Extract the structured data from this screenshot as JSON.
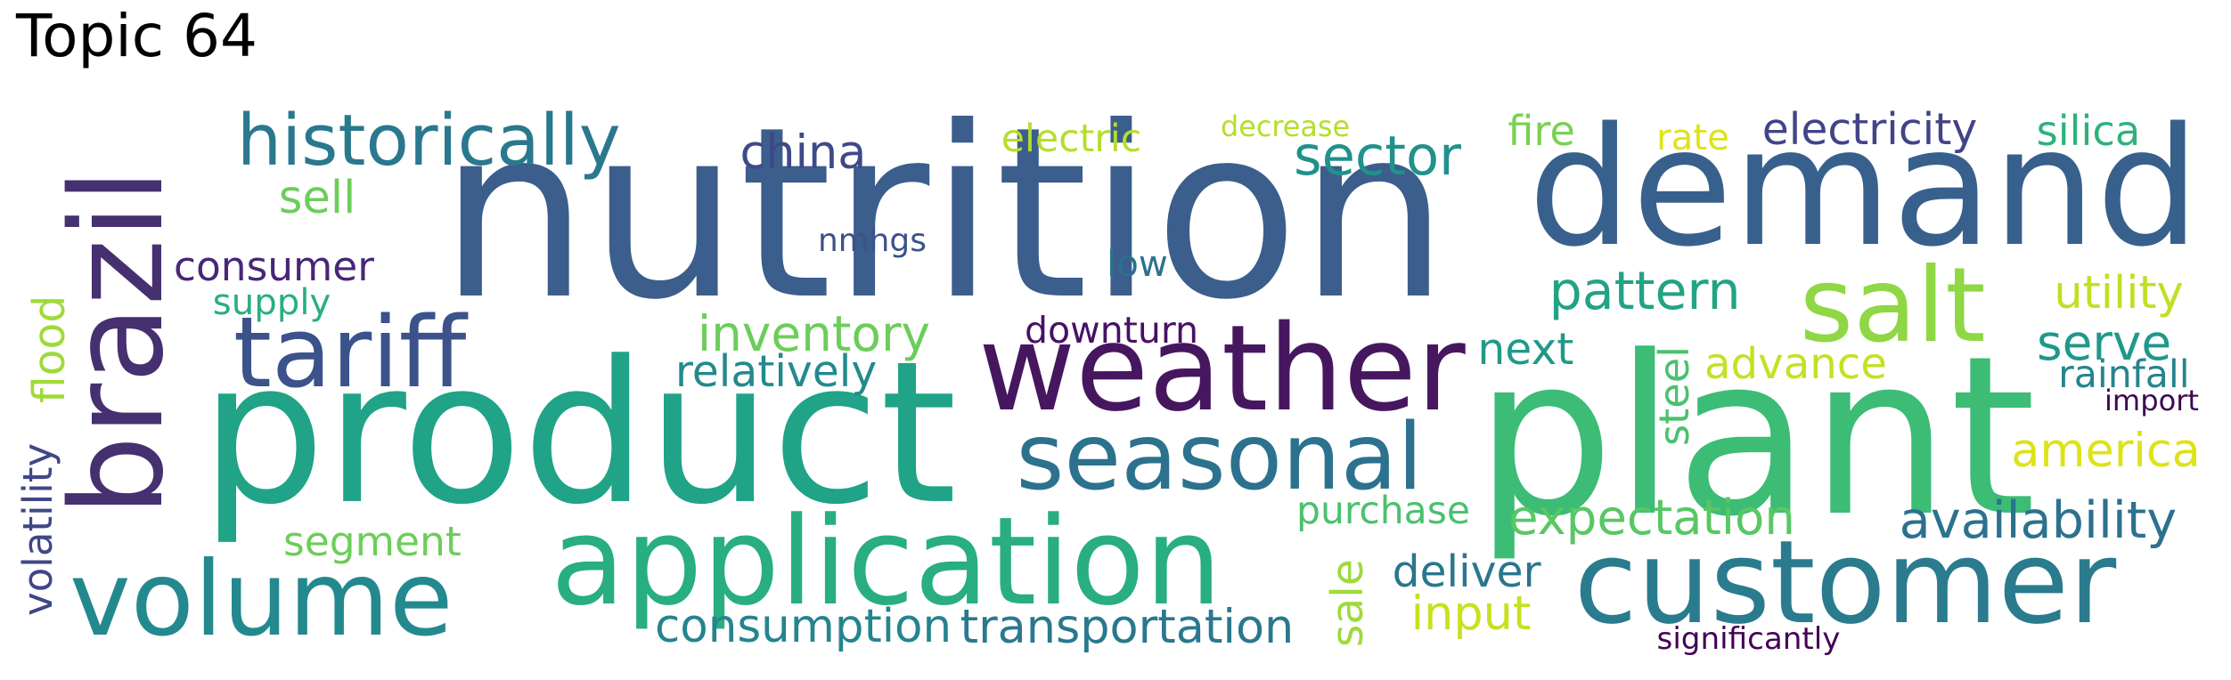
{
  "title": "Topic 64",
  "words": [
    {
      "text": "nutrition",
      "color": "#3b5e8c"
    },
    {
      "text": "demand",
      "color": "#38608c"
    },
    {
      "text": "product",
      "color": "#20a386"
    },
    {
      "text": "plant",
      "color": "#3cbc75"
    },
    {
      "text": "weather",
      "color": "#46175f"
    },
    {
      "text": "application",
      "color": "#28ae80"
    },
    {
      "text": "customer",
      "color": "#2a7b8e"
    },
    {
      "text": "brazil",
      "color": "#46306f"
    },
    {
      "text": "tariff",
      "color": "#3b528b"
    },
    {
      "text": "volume",
      "color": "#23898e"
    },
    {
      "text": "seasonal",
      "color": "#2c728e"
    },
    {
      "text": "salt",
      "color": "#8fd744"
    },
    {
      "text": "historically",
      "color": "#2a788e"
    },
    {
      "text": "sector",
      "color": "#21918c"
    },
    {
      "text": "pattern",
      "color": "#22a385"
    },
    {
      "text": "inventory",
      "color": "#6ccd5a"
    },
    {
      "text": "relatively",
      "color": "#228a8d"
    },
    {
      "text": "availability",
      "color": "#2c718e"
    },
    {
      "text": "expectation",
      "color": "#58c765"
    },
    {
      "text": "america",
      "color": "#dde318"
    },
    {
      "text": "utility",
      "color": "#c0df25"
    },
    {
      "text": "serve",
      "color": "#1f988b"
    },
    {
      "text": "rainfall",
      "color": "#25848e"
    },
    {
      "text": "advance",
      "color": "#c5e021"
    },
    {
      "text": "next",
      "color": "#1f9a8a"
    },
    {
      "text": "china",
      "color": "#3e4989"
    },
    {
      "text": "consumer",
      "color": "#482677"
    },
    {
      "text": "sell",
      "color": "#6ccd5a"
    },
    {
      "text": "supply",
      "color": "#29af7f"
    },
    {
      "text": "nmhgs",
      "color": "#3b528b"
    },
    {
      "text": "low",
      "color": "#2d708e"
    },
    {
      "text": "downturn",
      "color": "#471164"
    },
    {
      "text": "electric",
      "color": "#b5de2b"
    },
    {
      "text": "decrease",
      "color": "#b5de2b"
    },
    {
      "text": "fire",
      "color": "#7ad151"
    },
    {
      "text": "rate",
      "color": "#dde318"
    },
    {
      "text": "electricity",
      "color": "#414487"
    },
    {
      "text": "silica",
      "color": "#2db27d"
    },
    {
      "text": "import",
      "color": "#3e0751"
    },
    {
      "text": "steel",
      "color": "#4ac16d"
    },
    {
      "text": "purchase",
      "color": "#4ac16d"
    },
    {
      "text": "segment",
      "color": "#6ccd5a"
    },
    {
      "text": "consumption",
      "color": "#25848e"
    },
    {
      "text": "transportation",
      "color": "#2a788e"
    },
    {
      "text": "sale",
      "color": "#9fda3a"
    },
    {
      "text": "deliver",
      "color": "#2a768e"
    },
    {
      "text": "input",
      "color": "#c8e020"
    },
    {
      "text": "significantly",
      "color": "#440154"
    },
    {
      "text": "flood",
      "color": "#9fda3a"
    },
    {
      "text": "volatility",
      "color": "#3f4788"
    }
  ]
}
